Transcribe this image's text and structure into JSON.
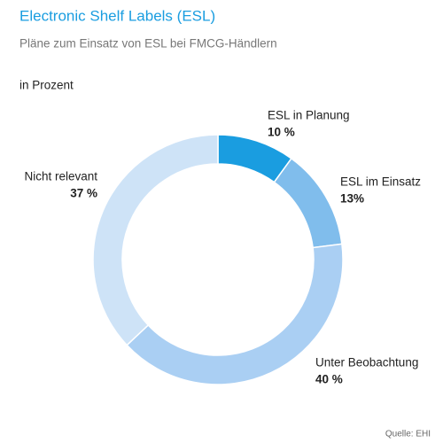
{
  "chart_data": {
    "type": "donut",
    "title": "Electronic Shelf Labels (ESL)",
    "subtitle": "Pläne zum Einsatz von ESL bei FMCG-Händlern",
    "unit_label": "in Prozent",
    "source": "Quelle: EHI",
    "categories": [
      "ESL in Planung",
      "ESL im Einsatz",
      "Unter Beobachtung",
      "Nicht relevant"
    ],
    "values": [
      10,
      13,
      40,
      37
    ],
    "value_labels": [
      "10 %",
      "13%",
      "40 %",
      "37 %"
    ],
    "colors": [
      "#1a9de0",
      "#80bdec",
      "#aacff3",
      "#cee3f7"
    ]
  }
}
